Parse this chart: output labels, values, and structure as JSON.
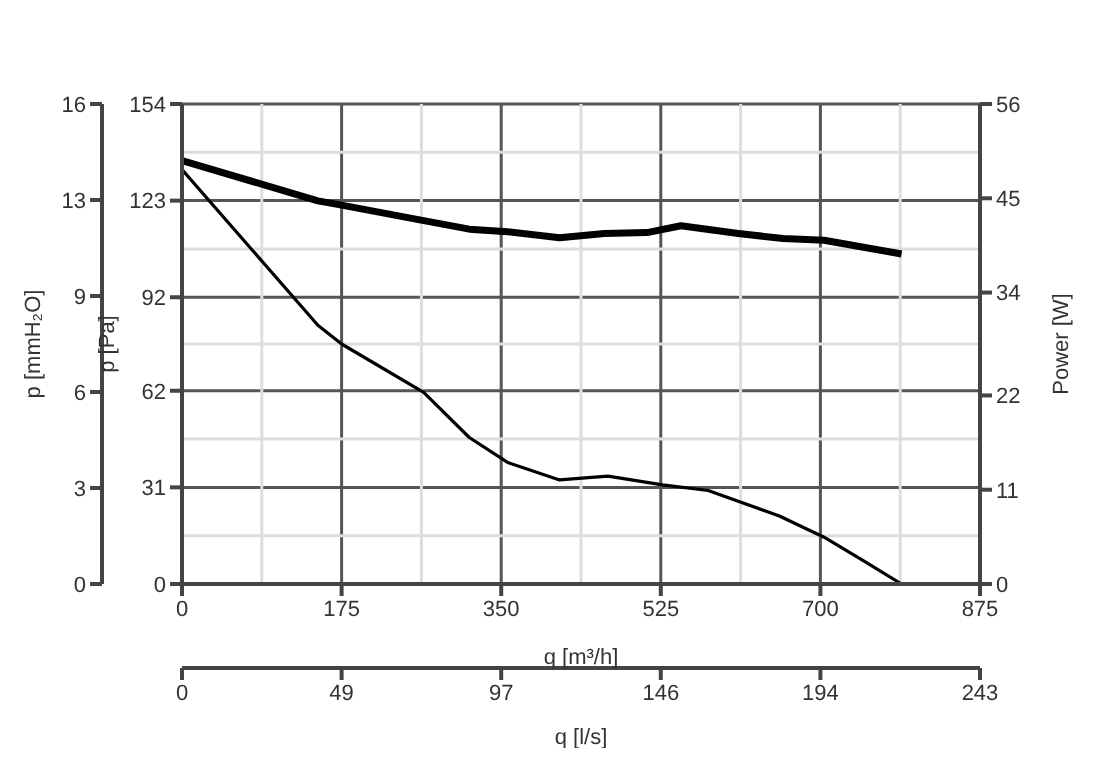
{
  "chart_data": {
    "type": "line",
    "xlabel": "q [m³/h]",
    "ylabel": "p [Pa]",
    "y2label": "Power [W]",
    "y3label": "p [mmH₂O]",
    "x2label": "q [l/s]",
    "xlim": [
      0,
      875
    ],
    "xticks": [
      0,
      175,
      350,
      525,
      700,
      875
    ],
    "x2lim": [
      0,
      243
    ],
    "x2ticks": [
      0,
      {
        "value": 48.6,
        "label": "49"
      },
      {
        "value": 97.2,
        "label": "97"
      },
      {
        "value": 145.8,
        "label": "146"
      },
      {
        "value": 194.4,
        "label": "194"
      },
      243
    ],
    "ylim": [
      0,
      154
    ],
    "yticks": [
      0,
      31,
      62,
      92,
      123,
      154
    ],
    "y2lim": [
      0,
      56
    ],
    "y2ticks": [
      0,
      11,
      22,
      34,
      45,
      56
    ],
    "y3lim": [
      0,
      15.7
    ],
    "y3ticks": [
      0,
      {
        "value": 3.14,
        "label": "3"
      },
      {
        "value": 6.28,
        "label": "6"
      },
      {
        "value": 9.42,
        "label": "9"
      },
      {
        "value": 12.56,
        "label": "13"
      },
      {
        "value": 15.7,
        "label": "16"
      }
    ],
    "grid": true,
    "legend": false,
    "marker": "none",
    "line_style": "solid",
    "series": [
      {
        "color": "#000000",
        "axis": "y2",
        "x": [
          0,
          149,
          175,
          265,
          315,
          357,
          414,
          463,
          510,
          547,
          610,
          659,
          704,
          789
        ],
        "values": [
          49.4,
          44.7,
          44.2,
          42.4,
          41.4,
          41.1,
          40.4,
          40.9,
          41.0,
          41.8,
          40.9,
          40.3,
          40.1,
          38.5
        ]
      },
      {
        "color": "#000000",
        "axis": "y",
        "x": [
          0,
          149,
          175,
          265,
          315,
          357,
          414,
          467,
          527,
          577,
          655,
          704,
          747,
          789
        ],
        "values": [
          133,
          83,
          77,
          61.5,
          47,
          39,
          33.4,
          34.6,
          31.8,
          30,
          21.8,
          15,
          7.5,
          0
        ]
      }
    ]
  }
}
